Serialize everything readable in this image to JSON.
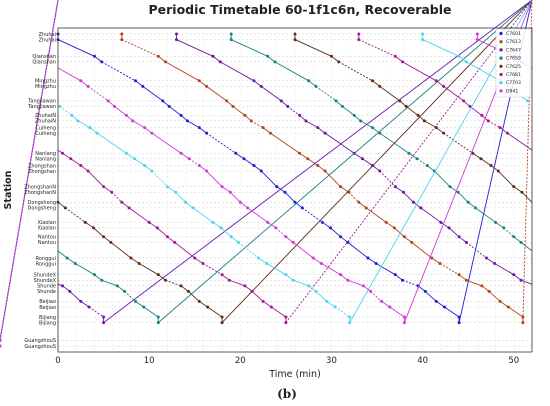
{
  "caption": "(b)",
  "chart_data": {
    "type": "line",
    "title": "Periodic Timetable 60-1f1c6n, Recoverable",
    "xlabel": "Time (min)",
    "ylabel": "Station",
    "xlim": [
      0,
      52
    ],
    "x_ticks": [
      0,
      10,
      20,
      30,
      40,
      50
    ],
    "grid": true,
    "legend_position": "top-right",
    "stations": [
      "Zhuhai",
      "Zhuhai",
      "Qianshan",
      "Qianshan",
      "Mingzhu",
      "Mingzhu",
      "Tangjiawan",
      "Tangjiawan",
      "ZhuhaiN",
      "ZhuhaiN",
      "Cuiheng",
      "Cuiheng",
      "Nanlang",
      "Nanlang",
      "Zhongshan",
      "Zhongshan",
      "ZhongshanN",
      "ZhongshanN",
      "Dongsheng",
      "Dongsheng",
      "Xiaolan",
      "Xiaolan",
      "Nantou",
      "Nantou",
      "Ronggui",
      "Ronggui",
      "ShundeX",
      "ShundeX",
      "Shunde",
      "Shunde",
      "Beijiao",
      "Beijiao",
      "Bijiang",
      "Bijiang",
      "GuangzhouS",
      "GuangzhouS"
    ],
    "station_positions": [
      0,
      1,
      4,
      5,
      8.4,
      9.4,
      12,
      13,
      14.6,
      15.6,
      16.8,
      17.8,
      21.4,
      22.4,
      23.6,
      24.6,
      27.4,
      28.4,
      30.2,
      31.2,
      33.8,
      34.8,
      36.4,
      37.4,
      40.2,
      41.2,
      43.2,
      44.2,
      45.2,
      46.2,
      48,
      49,
      50.8,
      51.8,
      55,
      56
    ],
    "series": [
      {
        "name": "C7601",
        "color": "#1f1fd0",
        "offset": 0
      },
      {
        "name": "C7613",
        "color": "#b0441e",
        "offset": 7
      },
      {
        "name": "C7647",
        "color": "#6a18a8",
        "offset": 13
      },
      {
        "name": "C7659",
        "color": "#1d7f80",
        "offset": 19
      },
      {
        "name": "C7625",
        "color": "#5f2d16",
        "offset": 26
      },
      {
        "name": "C7681",
        "color": "#a01890",
        "offset": 33
      },
      {
        "name": "C7703",
        "color": "#4ad6ea",
        "offset": 40
      },
      {
        "name": "D941",
        "color": "#d038d8",
        "offset": 46
      }
    ],
    "period": 52,
    "run_profile": {
      "arrive": [
        0,
        4,
        8.5,
        11.5,
        13.5,
        15.5,
        19.5,
        21.5,
        24,
        26,
        29,
        31,
        34,
        37,
        39.5,
        41.5,
        44
      ],
      "depart": [
        0,
        4.8,
        9.3,
        12.2,
        14.2,
        16.3,
        20.4,
        22.3,
        24.9,
        26.8,
        29.9,
        31.8,
        34.9,
        37.8,
        40.3,
        42.4,
        44
      ]
    }
  }
}
